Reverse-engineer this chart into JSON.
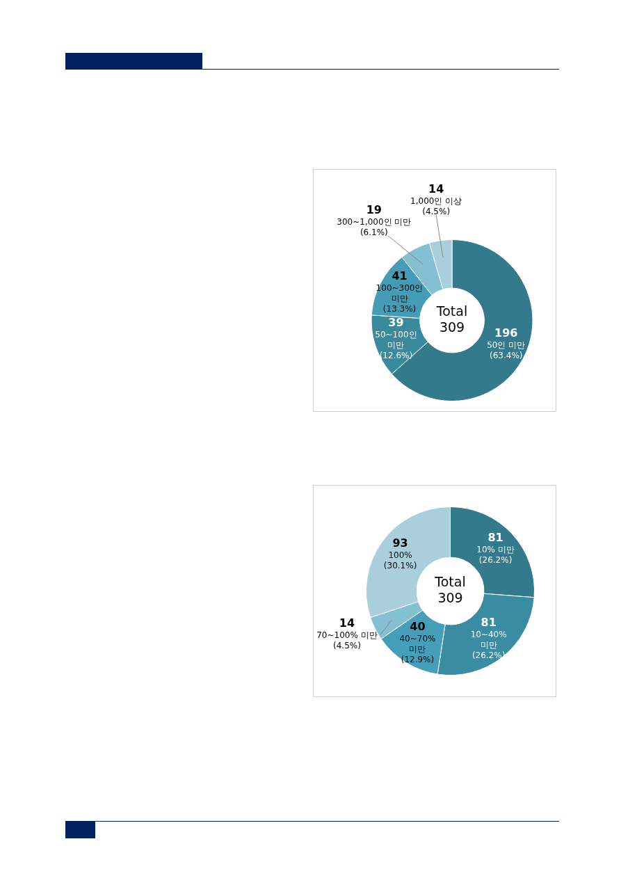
{
  "chart_data": [
    {
      "type": "donut",
      "categories": [
        "50인 미만",
        "50~100인 미만",
        "100~300인 미만",
        "300~1,000인 미만",
        "1,000인 이상"
      ],
      "values": [
        196,
        39,
        41,
        19,
        14
      ],
      "colors": [
        "#337a8c",
        "#3a8a9e",
        "#449db5",
        "#84bfd2",
        "#a9cfdc"
      ],
      "value_labels": [
        "196",
        "39",
        "41",
        "19",
        "14"
      ],
      "annotations": [
        "Total 309",
        {
          "text": "(63.4%)",
          "x": "50인 미만"
        },
        {
          "text": "(12.6%)",
          "x": "50~100인 미만"
        },
        {
          "text": "(13.3%)",
          "x": "100~300인 미만"
        },
        {
          "text": "(6.1%)",
          "x": "300~1,000인 미만"
        },
        {
          "text": "(4.5%)",
          "x": "1,000인 이상"
        }
      ],
      "legend": false
    },
    {
      "type": "donut",
      "categories": [
        "10% 미만",
        "10~40% 미만",
        "40~70% 미만",
        "70~100% 미만",
        "100%"
      ],
      "values": [
        81,
        81,
        40,
        14,
        93
      ],
      "colors": [
        "#337a8c",
        "#3a8ca3",
        "#459fb8",
        "#84bfd2",
        "#a9cfdc"
      ],
      "value_labels": [
        "81",
        "81",
        "40",
        "14",
        "93"
      ],
      "annotations": [
        "Total 309",
        {
          "text": "(26.2%)",
          "x": "10% 미만"
        },
        {
          "text": "(26.2%)",
          "x": "10~40% 미만"
        },
        {
          "text": "(12.9%)",
          "x": "40~70% 미만"
        },
        {
          "text": "(4.5%)",
          "x": "70~100% 미만"
        },
        {
          "text": "(30.1%)",
          "x": "100%"
        }
      ],
      "legend": false
    }
  ]
}
